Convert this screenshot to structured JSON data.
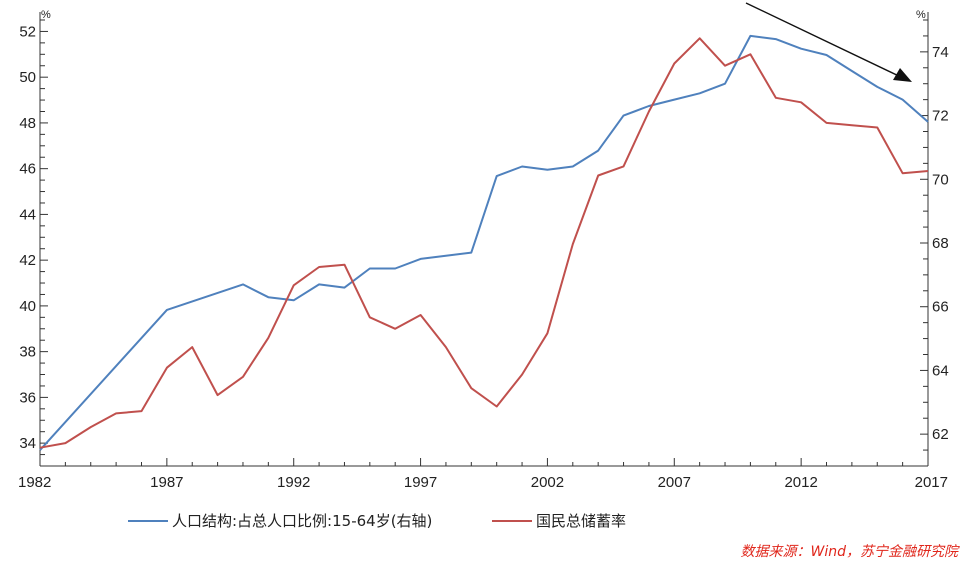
{
  "chart_data": {
    "type": "line",
    "x": [
      1982,
      1983,
      1984,
      1985,
      1986,
      1987,
      1988,
      1989,
      1990,
      1991,
      1992,
      1993,
      1994,
      1995,
      1996,
      1997,
      1998,
      1999,
      2000,
      2001,
      2002,
      2003,
      2004,
      2005,
      2006,
      2007,
      2008,
      2009,
      2010,
      2011,
      2012,
      2013,
      2014,
      2015,
      2016,
      2017
    ],
    "xticks": [
      "1982",
      "1987",
      "1992",
      "1997",
      "2002",
      "2007",
      "2012",
      "2017"
    ],
    "left_axis": {
      "unit": "%",
      "range": [
        33,
        52.5
      ],
      "ticks": [
        "34",
        "36",
        "38",
        "40",
        "42",
        "44",
        "46",
        "48",
        "50",
        "52"
      ]
    },
    "right_axis": {
      "unit": "%",
      "range": [
        61,
        75
      ],
      "ticks": [
        "62",
        "64",
        "66",
        "68",
        "70",
        "72",
        "74"
      ]
    },
    "series": [
      {
        "name": "人口结构:占总人口比例:15-64岁(右轴)",
        "axis": "right",
        "color": "#4f81bd",
        "values": [
          61.5,
          null,
          null,
          null,
          null,
          65.9,
          null,
          null,
          66.7,
          66.3,
          66.2,
          66.7,
          66.6,
          67.2,
          67.2,
          67.5,
          67.6,
          67.7,
          70.1,
          70.4,
          70.3,
          70.4,
          70.9,
          72.0,
          72.3,
          72.5,
          72.7,
          73.0,
          74.5,
          74.4,
          74.1,
          73.9,
          73.4,
          72.9,
          72.5,
          71.8
        ],
        "interpolate": true
      },
      {
        "name": "国民总储蓄率",
        "axis": "left",
        "color": "#c0504d",
        "values": [
          33.8,
          34.0,
          34.7,
          35.3,
          35.4,
          37.3,
          38.2,
          36.1,
          36.9,
          38.6,
          40.9,
          41.7,
          41.8,
          39.5,
          39.0,
          39.6,
          38.2,
          36.4,
          35.6,
          37.0,
          38.8,
          42.7,
          45.7,
          46.1,
          48.5,
          50.6,
          51.7,
          50.5,
          51.0,
          49.1,
          48.9,
          48.0,
          47.9,
          47.8,
          45.8,
          45.9
        ]
      }
    ],
    "legend_position": "bottom",
    "source": "数据来源：Wind，苏宁金融研究院",
    "grid": false
  }
}
